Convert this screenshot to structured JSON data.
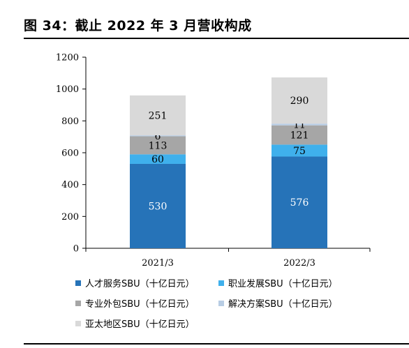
{
  "title": "图 34：截止 2022 年 3 月营收构成",
  "chart_data": {
    "type": "bar",
    "stacked": true,
    "categories": [
      "2021/3",
      "2022/3"
    ],
    "series": [
      {
        "name": "人才服务SBU（十亿日元）",
        "values": [
          530,
          576
        ],
        "color": "#2673b8",
        "label_color": "#ffffff"
      },
      {
        "name": "职业发展SBU（十亿日元）",
        "values": [
          60,
          75
        ],
        "color": "#3fb0ec",
        "label_color": "#000000"
      },
      {
        "name": "专业外包SBU（十亿日元）",
        "values": [
          113,
          121
        ],
        "color": "#a6a6a6",
        "label_color": "#000000"
      },
      {
        "name": "解决方案SBU（十亿日元）",
        "values": [
          6,
          11
        ],
        "color": "#b8cde4",
        "label_color": "#000000"
      },
      {
        "name": "亚太地区SBU（十亿日元）",
        "values": [
          251,
          290
        ],
        "color": "#d9d9d9",
        "label_color": "#000000"
      }
    ],
    "ylim": [
      0,
      1200
    ],
    "yticks": [
      "0",
      "200",
      "400",
      "600",
      "800",
      "1000",
      "1200"
    ],
    "ytick_values": [
      0,
      200,
      400,
      600,
      800,
      1000,
      1200
    ],
    "grid": false,
    "legend_position": "bottom"
  }
}
